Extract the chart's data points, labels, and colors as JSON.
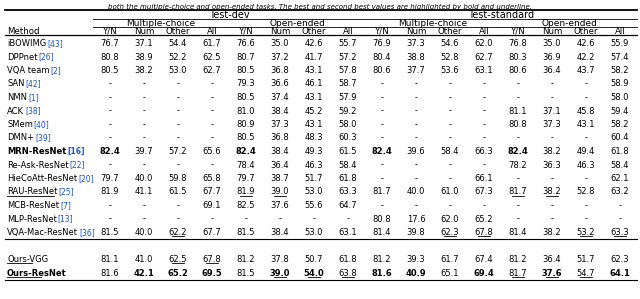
{
  "title_top": "both the multiple-choice and open-ended tasks. The best and second best values are highlighted by bold and underline.",
  "methods": [
    [
      "iBOWIMG",
      "43"
    ],
    [
      "DPPnet",
      "26"
    ],
    [
      "VQA team",
      "2"
    ],
    [
      "SAN",
      "42"
    ],
    [
      "NMN",
      "1"
    ],
    [
      "ACK",
      "38"
    ],
    [
      "SMem",
      "40"
    ],
    [
      "DMN+",
      "39"
    ],
    [
      "MRN-ResNet",
      "16"
    ],
    [
      "Re-Ask-ResNet",
      "22"
    ],
    [
      "HieCoAtt-ResNet",
      "20"
    ],
    [
      "RAU-ResNet",
      "25"
    ],
    [
      "MCB-ResNet",
      "7"
    ],
    [
      "MLP-ResNet",
      "13"
    ],
    [
      "VQA-Mac-ResNet",
      "36"
    ],
    [
      "",
      ""
    ],
    [
      "Ours-VGG",
      ""
    ],
    [
      "Ours-ResNet",
      ""
    ]
  ],
  "data": [
    [
      "76.7",
      "37.1",
      "54.4",
      "61.7",
      "76.6",
      "35.0",
      "42.6",
      "55.7",
      "76.9",
      "37.3",
      "54.6",
      "62.0",
      "76.8",
      "35.0",
      "42.6",
      "55.9"
    ],
    [
      "80.8",
      "38.9",
      "52.2",
      "62.5",
      "80.7",
      "37.2",
      "41.7",
      "57.2",
      "80.4",
      "38.8",
      "52.8",
      "62.7",
      "80.3",
      "36.9",
      "42.2",
      "57.4"
    ],
    [
      "80.5",
      "38.2",
      "53.0",
      "62.7",
      "80.5",
      "36.8",
      "43.1",
      "57.8",
      "80.6",
      "37.7",
      "53.6",
      "63.1",
      "80.6",
      "36.4",
      "43.7",
      "58.2"
    ],
    [
      "-",
      "-",
      "-",
      "-",
      "79.3",
      "36.6",
      "46.1",
      "58.7",
      "-",
      "-",
      "-",
      "-",
      "-",
      "-",
      "-",
      "58.9"
    ],
    [
      "-",
      "-",
      "-",
      "-",
      "80.5",
      "37.4",
      "43.1",
      "57.9",
      "-",
      "-",
      "-",
      "-",
      "-",
      "-",
      "-",
      "58.0"
    ],
    [
      "-",
      "-",
      "-",
      "-",
      "81.0",
      "38.4",
      "45.2",
      "59.2",
      "-",
      "-",
      "-",
      "-",
      "81.1",
      "37.1",
      "45.8",
      "59.4"
    ],
    [
      "-",
      "-",
      "-",
      "-",
      "80.9",
      "37.3",
      "43.1",
      "58.0",
      "-",
      "-",
      "-",
      "-",
      "80.8",
      "37.3",
      "43.1",
      "58.2"
    ],
    [
      "-",
      "-",
      "-",
      "-",
      "80.5",
      "36.8",
      "48.3",
      "60.3",
      "-",
      "-",
      "-",
      "-",
      "-",
      "-",
      "-",
      "60.4"
    ],
    [
      "82.4",
      "39.7",
      "57.2",
      "65.6",
      "82.4",
      "38.4",
      "49.3",
      "61.5",
      "82.4",
      "39.6",
      "58.4",
      "66.3",
      "82.4",
      "38.2",
      "49.4",
      "61.8"
    ],
    [
      "-",
      "-",
      "-",
      "-",
      "78.4",
      "36.4",
      "46.3",
      "58.4",
      "-",
      "-",
      "-",
      "-",
      "78.2",
      "36.3",
      "46.3",
      "58.4"
    ],
    [
      "79.7",
      "40.0",
      "59.8",
      "65.8",
      "79.7",
      "38.7",
      "51.7",
      "61.8",
      "-",
      "-",
      "-",
      "66.1",
      "-",
      "-",
      "-",
      "62.1"
    ],
    [
      "81.9",
      "41.1",
      "61.5",
      "67.7",
      "81.9",
      "39.0",
      "53.0",
      "63.3",
      "81.7",
      "40.0",
      "61.0",
      "67.3",
      "81.7",
      "38.2",
      "52.8",
      "63.2"
    ],
    [
      "-",
      "-",
      "-",
      "69.1",
      "82.5",
      "37.6",
      "55.6",
      "64.7",
      "-",
      "-",
      "-",
      "-",
      "-",
      "-",
      "-",
      "-"
    ],
    [
      "-",
      "-",
      "-",
      "-",
      "-",
      "-",
      "-",
      "-",
      "80.8",
      "17.6",
      "62.0",
      "65.2",
      "-",
      "-",
      "-",
      "-"
    ],
    [
      "81.5",
      "40.0",
      "62.2",
      "67.7",
      "81.5",
      "38.4",
      "53.0",
      "63.1",
      "81.4",
      "39.8",
      "62.3",
      "67.8",
      "81.4",
      "38.2",
      "53.2",
      "63.3"
    ],
    [
      "",
      "",
      "",
      "",
      "",
      "",
      "",
      "",
      "",
      "",
      "",
      "",
      "",
      "",
      "",
      ""
    ],
    [
      "81.1",
      "41.0",
      "62.5",
      "67.8",
      "81.2",
      "37.8",
      "50.7",
      "61.8",
      "81.2",
      "39.3",
      "61.7",
      "67.4",
      "81.2",
      "36.4",
      "51.7",
      "62.3"
    ],
    [
      "81.6",
      "42.1",
      "65.2",
      "69.5",
      "81.5",
      "39.0",
      "54.0",
      "63.8",
      "81.6",
      "40.9",
      "65.1",
      "69.4",
      "81.7",
      "37.6",
      "54.7",
      "64.1"
    ]
  ],
  "bold_data_cells": [
    [
      8,
      0
    ],
    [
      8,
      4
    ],
    [
      8,
      8
    ],
    [
      8,
      12
    ],
    [
      17,
      1
    ],
    [
      17,
      2
    ],
    [
      17,
      3
    ],
    [
      17,
      5
    ],
    [
      17,
      6
    ],
    [
      17,
      8
    ],
    [
      17,
      9
    ],
    [
      17,
      11
    ],
    [
      17,
      13
    ],
    [
      17,
      15
    ]
  ],
  "underline_data_cells": [
    [
      11,
      4
    ],
    [
      11,
      5
    ],
    [
      11,
      12
    ],
    [
      11,
      13
    ],
    [
      14,
      2
    ],
    [
      14,
      10
    ],
    [
      14,
      11
    ],
    [
      14,
      14
    ],
    [
      14,
      15
    ],
    [
      16,
      2
    ],
    [
      16,
      3
    ],
    [
      17,
      5
    ],
    [
      17,
      6
    ],
    [
      17,
      7
    ],
    [
      17,
      12
    ],
    [
      17,
      13
    ],
    [
      17,
      14
    ]
  ],
  "bold_method_rows": [
    8,
    17
  ],
  "underline_method_rows": [
    11,
    16,
    17
  ],
  "separator_after_row": 14,
  "ref_color": "#1a56cc",
  "line_color": "#000000",
  "text_color": "#000000"
}
